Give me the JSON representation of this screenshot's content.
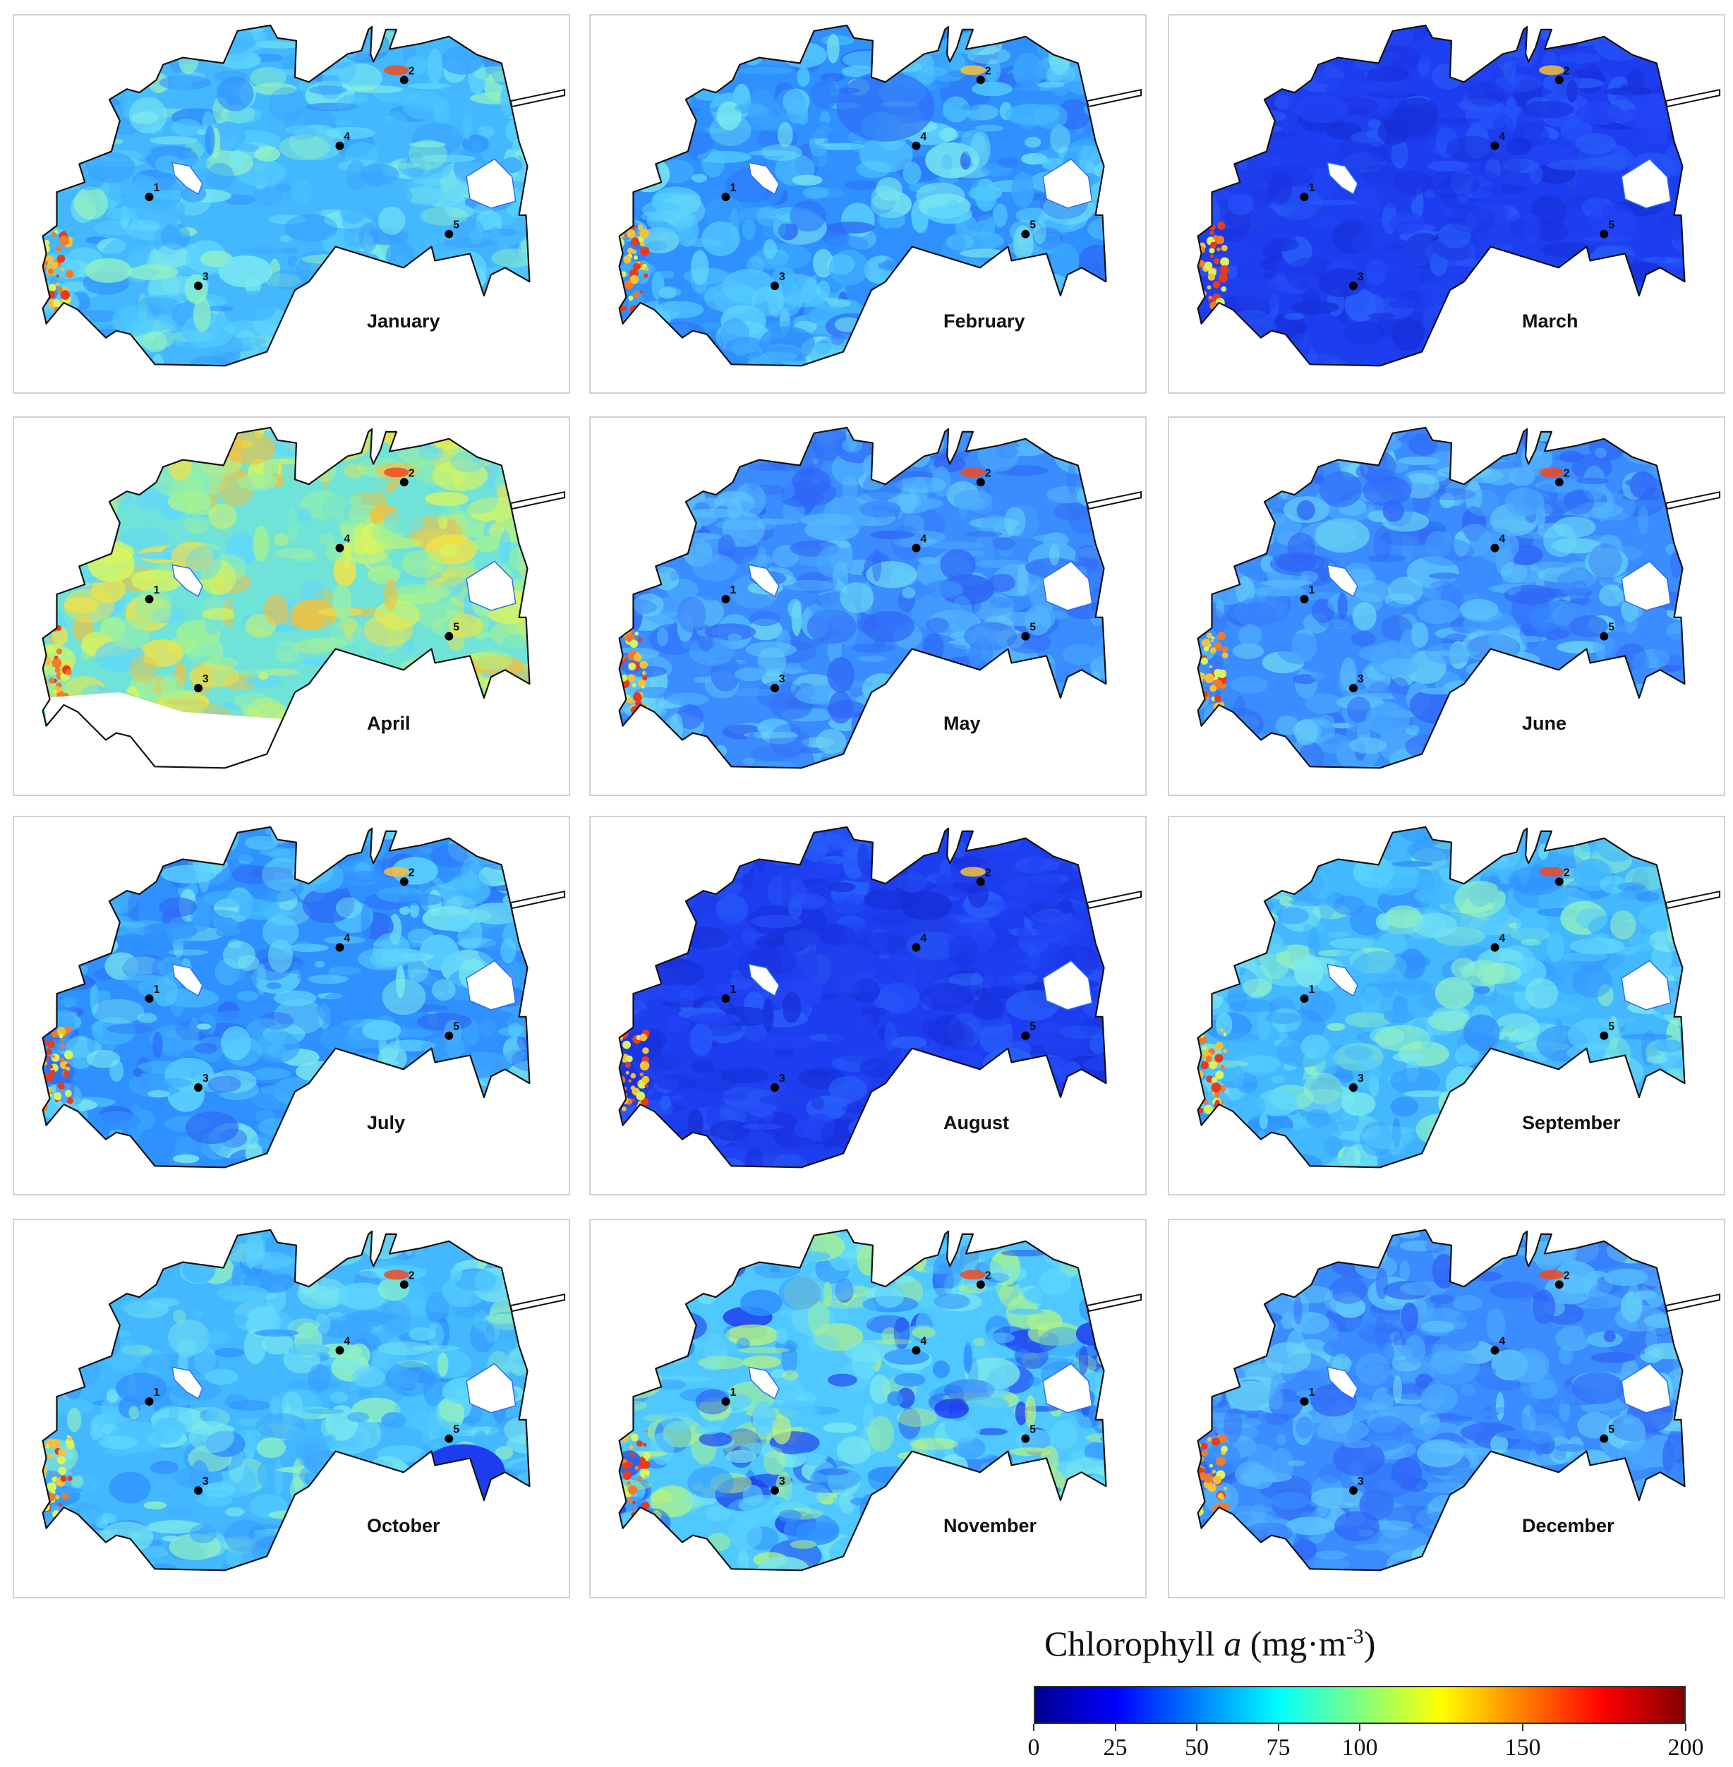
{
  "panels": [
    {
      "month": "January",
      "palette": "light",
      "variant": "jan"
    },
    {
      "month": "February",
      "palette": "mixed",
      "variant": "feb"
    },
    {
      "month": "March",
      "palette": "dark",
      "variant": "mar"
    },
    {
      "month": "April",
      "palette": "warm",
      "variant": "apr"
    },
    {
      "month": "May",
      "palette": "mid",
      "variant": "may"
    },
    {
      "month": "June",
      "palette": "mid",
      "variant": "jun"
    },
    {
      "month": "July",
      "palette": "mixed",
      "variant": "jul"
    },
    {
      "month": "August",
      "palette": "dark",
      "variant": "aug"
    },
    {
      "month": "September",
      "palette": "light",
      "variant": "sep"
    },
    {
      "month": "October",
      "palette": "light",
      "variant": "oct"
    },
    {
      "month": "November",
      "palette": "swirl",
      "variant": "nov"
    },
    {
      "month": "December",
      "palette": "mid",
      "variant": "dec"
    }
  ],
  "sampling_points": [
    "1",
    "2",
    "3",
    "4",
    "5"
  ],
  "legend": {
    "title_prefix": "Chlorophyll ",
    "title_italic": "a",
    "title_unit": " (mg·m",
    "title_exp": "-3",
    "title_close": ")",
    "ticks": [
      0,
      25,
      50,
      75,
      100,
      150,
      200
    ],
    "colormap": [
      "#00008f",
      "#0000ff",
      "#0080ff",
      "#00ffff",
      "#80ff80",
      "#ffff00",
      "#ff8000",
      "#ff0000",
      "#800000"
    ]
  }
}
